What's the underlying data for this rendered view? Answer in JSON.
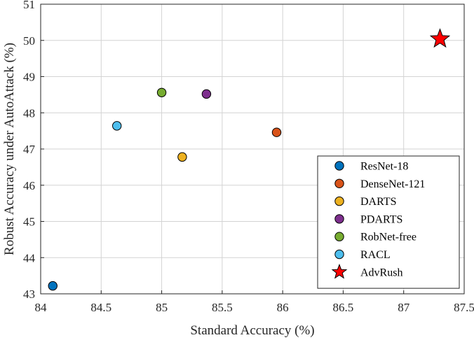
{
  "chart_data": {
    "type": "scatter",
    "xlabel": "Standard Accuracy (%)",
    "ylabel": "Robust Accuracy under AutoAttack (%)",
    "xlim": [
      84,
      87.5
    ],
    "ylim": [
      43,
      51
    ],
    "xticks": [
      "84",
      "84.5",
      "85",
      "85.5",
      "86",
      "86.5",
      "87",
      "87.5"
    ],
    "yticks": [
      "43",
      "44",
      "45",
      "46",
      "47",
      "48",
      "49",
      "50",
      "51"
    ],
    "grid": true,
    "legend_position": "bottom-right",
    "series": [
      {
        "name": "ResNet-18",
        "marker": "circle",
        "color": "#0072BD",
        "x": [
          84.1
        ],
        "y": [
          43.22
        ]
      },
      {
        "name": "DenseNet-121",
        "marker": "circle",
        "color": "#D95319",
        "x": [
          85.95
        ],
        "y": [
          47.46
        ]
      },
      {
        "name": "DARTS",
        "marker": "circle",
        "color": "#EDB120",
        "x": [
          85.17
        ],
        "y": [
          46.78
        ]
      },
      {
        "name": "PDARTS",
        "marker": "circle",
        "color": "#7E2F8E",
        "x": [
          85.37
        ],
        "y": [
          48.52
        ]
      },
      {
        "name": "RobNet-free",
        "marker": "circle",
        "color": "#77AC30",
        "x": [
          85.0
        ],
        "y": [
          48.56
        ]
      },
      {
        "name": "RACL",
        "marker": "circle",
        "color": "#4DBEEE",
        "x": [
          84.63
        ],
        "y": [
          47.64
        ]
      },
      {
        "name": "AdvRush",
        "marker": "star",
        "color": "#FF0000",
        "x": [
          87.3
        ],
        "y": [
          50.04
        ]
      }
    ]
  }
}
